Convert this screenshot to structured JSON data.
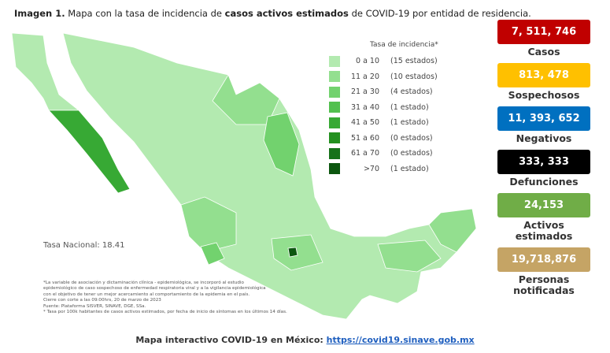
{
  "header": {
    "parts": [
      "Imagen 1.",
      "Mapa con la tasa de incidencia de",
      "casos activos estimados",
      "de COVID-19 por entidad de residencia."
    ]
  },
  "legend": {
    "title": "Tasa de incidencia*",
    "items": [
      {
        "range": "0 a 10",
        "count": "(15 estados)",
        "color": "#b3eab0"
      },
      {
        "range": "11 a 20",
        "count": "(10 estados)",
        "color": "#93df8f"
      },
      {
        "range": "21 a 30",
        "count": "(4 estados)",
        "color": "#72d26e"
      },
      {
        "range": "31 a 40",
        "count": "(1 estado)",
        "color": "#52c04e"
      },
      {
        "range": "41 a 50",
        "count": "(1 estado)",
        "color": "#37a934"
      },
      {
        "range": "51 a 60",
        "count": "(0 estados)",
        "color": "#23901f"
      },
      {
        "range": "61 a 70",
        "count": "(0 estados)",
        "color": "#17721a"
      },
      {
        "range": ">70",
        "count": "(1 estado)",
        "color": "#0c560f"
      }
    ]
  },
  "national_rate": "Tasa Nacional: 18.41",
  "notes": [
    "*La variable de asociación y dictaminación clínica - epidemiológica, se incorporó al estudio",
    "epidemiológico de caso sospechoso de enfermedad respiratoria viral y a la vigilancia epidemiológica",
    "con el objetivo de tener un mejor acercamiento al comportamiento de la epidemia en el país.",
    "Cierre con corte a las 09:00hrs, 20 de marzo de 2023",
    "Fuente: Plataforma SISVER, SINAVE, DGE, SSa.",
    "* Tasa por 100k habitantes de casos activos estimados, por fecha de inicio de síntomas en los últimos 14 días."
  ],
  "footer": {
    "text": "Mapa interactivo COVID-19 en México:",
    "link": "https://covid19.sinave.gob.mx"
  },
  "stats": [
    {
      "value": "7, 511, 746",
      "label": "Casos",
      "color": "#c00000",
      "text_color": "#ffffff"
    },
    {
      "value": "813, 478",
      "label": "Sospechosos",
      "color": "#ffc000",
      "text_color": "#ffffff"
    },
    {
      "value": "11, 393, 652",
      "label": "Negativos",
      "color": "#0070c0",
      "text_color": "#ffffff"
    },
    {
      "value": "333, 333",
      "label": "Defunciones",
      "color": "#000000",
      "text_color": "#ffffff"
    },
    {
      "value": "24,153",
      "label": "Activos estimados",
      "color": "#70ad47",
      "text_color": "#ffffff"
    },
    {
      "value": "19,718,876",
      "label": "Personas notificadas",
      "color": "#c5a465",
      "text_color": "#ffffff"
    }
  ]
}
